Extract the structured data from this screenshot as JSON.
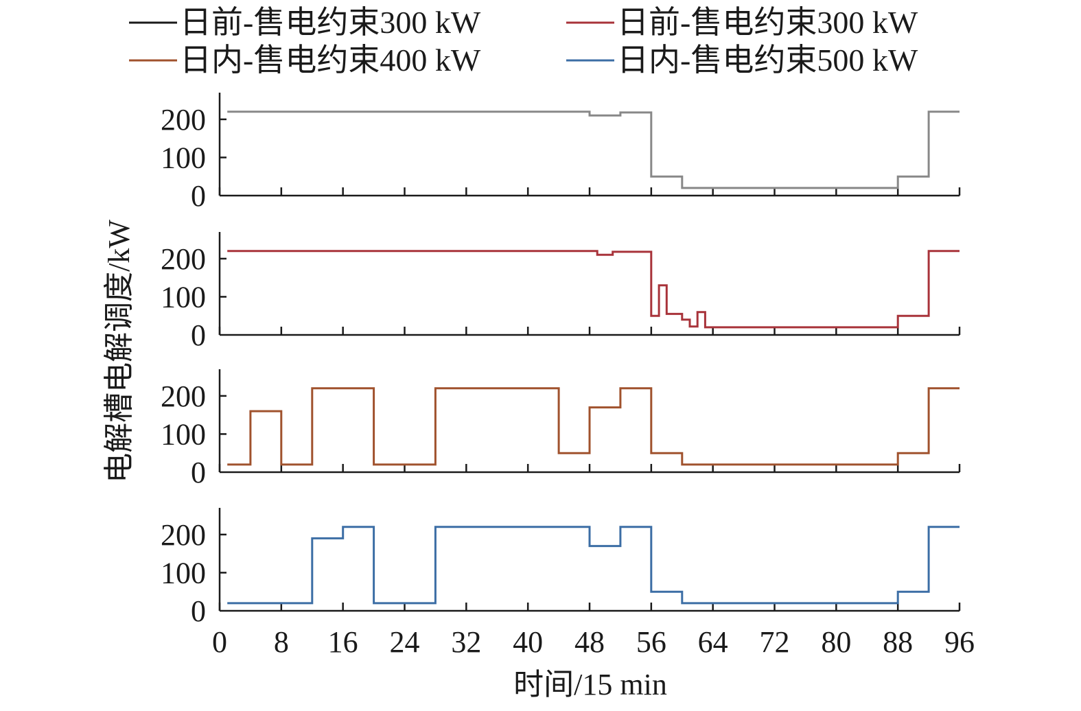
{
  "chart_data": {
    "type": "line",
    "title": "",
    "xlabel": "时间/15 min",
    "ylabel": "电解槽电解调度/kW",
    "xlim": [
      0,
      96
    ],
    "ylim": [
      0,
      270
    ],
    "x_ticks": [
      0,
      8,
      16,
      24,
      32,
      40,
      48,
      56,
      64,
      72,
      80,
      88,
      96
    ],
    "y_ticks": [
      0,
      100,
      200
    ],
    "grid": false,
    "legend_placement": "top",
    "legend": [
      {
        "name": "日前-售电约束300 kW",
        "color": "#1a1a1a"
      },
      {
        "name": "日前-售电约束300 kW",
        "color": "#a8333a"
      },
      {
        "name": "日内-售电约束400 kW",
        "color": "#a0522d"
      },
      {
        "name": "日内-售电约束500 kW",
        "color": "#3c6ea5"
      }
    ],
    "series": [
      {
        "color": "#888888",
        "step": true,
        "points": [
          [
            1,
            220
          ],
          [
            48,
            220
          ],
          [
            48,
            210
          ],
          [
            52,
            210
          ],
          [
            52,
            218
          ],
          [
            56,
            218
          ],
          [
            56,
            50
          ],
          [
            60,
            50
          ],
          [
            60,
            20
          ],
          [
            88,
            20
          ],
          [
            88,
            50
          ],
          [
            92,
            50
          ],
          [
            92,
            220
          ],
          [
            96,
            220
          ]
        ]
      },
      {
        "color": "#a8333a",
        "step": true,
        "points": [
          [
            1,
            220
          ],
          [
            49,
            220
          ],
          [
            49,
            210
          ],
          [
            51,
            210
          ],
          [
            51,
            218
          ],
          [
            56,
            218
          ],
          [
            56,
            50
          ],
          [
            57,
            50
          ],
          [
            57,
            130
          ],
          [
            58,
            130
          ],
          [
            58,
            55
          ],
          [
            60,
            55
          ],
          [
            60,
            40
          ],
          [
            61,
            40
          ],
          [
            61,
            22
          ],
          [
            62,
            22
          ],
          [
            62,
            60
          ],
          [
            63,
            60
          ],
          [
            63,
            20
          ],
          [
            88,
            20
          ],
          [
            88,
            50
          ],
          [
            92,
            50
          ],
          [
            92,
            220
          ],
          [
            96,
            220
          ]
        ]
      },
      {
        "color": "#a0522d",
        "step": true,
        "points": [
          [
            1,
            20
          ],
          [
            4,
            20
          ],
          [
            4,
            160
          ],
          [
            8,
            160
          ],
          [
            8,
            20
          ],
          [
            12,
            20
          ],
          [
            12,
            220
          ],
          [
            20,
            220
          ],
          [
            20,
            20
          ],
          [
            28,
            20
          ],
          [
            28,
            220
          ],
          [
            44,
            220
          ],
          [
            44,
            50
          ],
          [
            48,
            50
          ],
          [
            48,
            170
          ],
          [
            52,
            170
          ],
          [
            52,
            220
          ],
          [
            56,
            220
          ],
          [
            56,
            50
          ],
          [
            60,
            50
          ],
          [
            60,
            20
          ],
          [
            88,
            20
          ],
          [
            88,
            50
          ],
          [
            92,
            50
          ],
          [
            92,
            220
          ],
          [
            96,
            220
          ]
        ]
      },
      {
        "color": "#3c6ea5",
        "step": true,
        "points": [
          [
            1,
            20
          ],
          [
            12,
            20
          ],
          [
            12,
            190
          ],
          [
            16,
            190
          ],
          [
            16,
            220
          ],
          [
            20,
            220
          ],
          [
            20,
            20
          ],
          [
            28,
            20
          ],
          [
            28,
            220
          ],
          [
            48,
            220
          ],
          [
            48,
            170
          ],
          [
            52,
            170
          ],
          [
            52,
            220
          ],
          [
            56,
            220
          ],
          [
            56,
            50
          ],
          [
            60,
            50
          ],
          [
            60,
            20
          ],
          [
            88,
            20
          ],
          [
            88,
            50
          ],
          [
            92,
            50
          ],
          [
            92,
            220
          ],
          [
            96,
            220
          ]
        ]
      }
    ]
  }
}
